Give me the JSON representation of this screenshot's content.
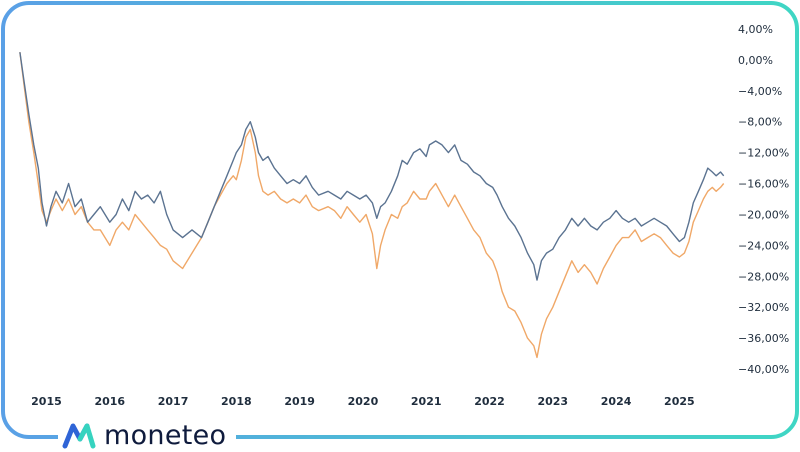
{
  "brand": {
    "name": "moneteo",
    "logo_icon": "moneteo-logo-icon",
    "colors": {
      "frame_start": "#5aa0e6",
      "frame_end": "#3fd6c4",
      "logo_blue": "#2f64d6",
      "logo_teal": "#36d3bf",
      "text": "#0f1b3d"
    }
  },
  "chart_data": {
    "type": "line",
    "title": "",
    "xlabel": "",
    "ylabel": "",
    "x_ticks": [
      "2015",
      "2016",
      "2017",
      "2018",
      "2019",
      "2020",
      "2021",
      "2022",
      "2023",
      "2024",
      "2025"
    ],
    "y_ticks": [
      "4,00%",
      "0,00%",
      "−4,00%",
      "−8,00%",
      "−12,00%",
      "−16,00%",
      "−20,00%",
      "−24,00%",
      "−28,00%",
      "−32,00%",
      "−36,00%",
      "−40,00%"
    ],
    "y_tick_values": [
      4,
      0,
      -4,
      -8,
      -12,
      -16,
      -20,
      -24,
      -28,
      -32,
      -36,
      -40
    ],
    "ylim": [
      -42,
      5
    ],
    "xlim": [
      2014.55,
      2025.8
    ],
    "y_axis_position": "right",
    "grid": false,
    "legend": "none",
    "series": [
      {
        "color": "#5b7391",
        "points": [
          [
            2014.58,
            1.0
          ],
          [
            2014.65,
            -3.0
          ],
          [
            2014.72,
            -7.0
          ],
          [
            2014.8,
            -11.0
          ],
          [
            2014.87,
            -14.0
          ],
          [
            2014.93,
            -18.5
          ],
          [
            2015.0,
            -21.5
          ],
          [
            2015.07,
            -19.0
          ],
          [
            2015.15,
            -17.0
          ],
          [
            2015.25,
            -18.5
          ],
          [
            2015.35,
            -16.0
          ],
          [
            2015.45,
            -19.0
          ],
          [
            2015.55,
            -18.0
          ],
          [
            2015.65,
            -21.0
          ],
          [
            2015.75,
            -20.0
          ],
          [
            2015.85,
            -19.0
          ],
          [
            2016.0,
            -21.0
          ],
          [
            2016.1,
            -20.0
          ],
          [
            2016.2,
            -18.0
          ],
          [
            2016.3,
            -19.5
          ],
          [
            2016.4,
            -17.0
          ],
          [
            2016.5,
            -18.0
          ],
          [
            2016.6,
            -17.5
          ],
          [
            2016.7,
            -18.5
          ],
          [
            2016.8,
            -17.0
          ],
          [
            2016.9,
            -20.0
          ],
          [
            2017.0,
            -22.0
          ],
          [
            2017.15,
            -23.0
          ],
          [
            2017.3,
            -22.0
          ],
          [
            2017.45,
            -23.0
          ],
          [
            2017.55,
            -21.0
          ],
          [
            2017.65,
            -19.0
          ],
          [
            2017.75,
            -17.0
          ],
          [
            2017.85,
            -15.0
          ],
          [
            2017.95,
            -13.0
          ],
          [
            2018.0,
            -12.0
          ],
          [
            2018.08,
            -11.0
          ],
          [
            2018.15,
            -9.0
          ],
          [
            2018.22,
            -8.0
          ],
          [
            2018.3,
            -10.0
          ],
          [
            2018.35,
            -12.0
          ],
          [
            2018.42,
            -13.0
          ],
          [
            2018.5,
            -12.5
          ],
          [
            2018.6,
            -14.0
          ],
          [
            2018.7,
            -15.0
          ],
          [
            2018.8,
            -16.0
          ],
          [
            2018.9,
            -15.5
          ],
          [
            2019.0,
            -16.0
          ],
          [
            2019.1,
            -15.0
          ],
          [
            2019.2,
            -16.5
          ],
          [
            2019.3,
            -17.5
          ],
          [
            2019.45,
            -17.0
          ],
          [
            2019.55,
            -17.5
          ],
          [
            2019.65,
            -18.0
          ],
          [
            2019.75,
            -17.0
          ],
          [
            2019.85,
            -17.5
          ],
          [
            2019.95,
            -18.0
          ],
          [
            2020.05,
            -17.5
          ],
          [
            2020.15,
            -18.5
          ],
          [
            2020.22,
            -20.5
          ],
          [
            2020.28,
            -19.0
          ],
          [
            2020.35,
            -18.5
          ],
          [
            2020.45,
            -17.0
          ],
          [
            2020.55,
            -15.0
          ],
          [
            2020.62,
            -13.0
          ],
          [
            2020.7,
            -13.5
          ],
          [
            2020.8,
            -12.0
          ],
          [
            2020.9,
            -11.5
          ],
          [
            2021.0,
            -12.5
          ],
          [
            2021.05,
            -11.0
          ],
          [
            2021.15,
            -10.5
          ],
          [
            2021.25,
            -11.0
          ],
          [
            2021.35,
            -12.0
          ],
          [
            2021.45,
            -11.0
          ],
          [
            2021.55,
            -13.0
          ],
          [
            2021.65,
            -13.5
          ],
          [
            2021.75,
            -14.5
          ],
          [
            2021.85,
            -15.0
          ],
          [
            2021.95,
            -16.0
          ],
          [
            2022.05,
            -16.5
          ],
          [
            2022.12,
            -17.5
          ],
          [
            2022.2,
            -19.0
          ],
          [
            2022.3,
            -20.5
          ],
          [
            2022.4,
            -21.5
          ],
          [
            2022.5,
            -23.0
          ],
          [
            2022.6,
            -25.0
          ],
          [
            2022.7,
            -26.5
          ],
          [
            2022.75,
            -28.5
          ],
          [
            2022.82,
            -26.0
          ],
          [
            2022.9,
            -25.0
          ],
          [
            2023.0,
            -24.5
          ],
          [
            2023.1,
            -23.0
          ],
          [
            2023.2,
            -22.0
          ],
          [
            2023.3,
            -20.5
          ],
          [
            2023.4,
            -21.5
          ],
          [
            2023.5,
            -20.5
          ],
          [
            2023.6,
            -21.5
          ],
          [
            2023.7,
            -22.0
          ],
          [
            2023.8,
            -21.0
          ],
          [
            2023.9,
            -20.5
          ],
          [
            2024.0,
            -19.5
          ],
          [
            2024.1,
            -20.5
          ],
          [
            2024.2,
            -21.0
          ],
          [
            2024.3,
            -20.5
          ],
          [
            2024.4,
            -21.5
          ],
          [
            2024.5,
            -21.0
          ],
          [
            2024.6,
            -20.5
          ],
          [
            2024.7,
            -21.0
          ],
          [
            2024.8,
            -21.5
          ],
          [
            2024.9,
            -22.5
          ],
          [
            2025.0,
            -23.5
          ],
          [
            2025.08,
            -23.0
          ],
          [
            2025.15,
            -21.0
          ],
          [
            2025.22,
            -18.5
          ],
          [
            2025.3,
            -17.0
          ],
          [
            2025.38,
            -15.5
          ],
          [
            2025.45,
            -14.0
          ],
          [
            2025.52,
            -14.5
          ],
          [
            2025.58,
            -15.0
          ],
          [
            2025.65,
            -14.5
          ],
          [
            2025.7,
            -15.0
          ]
        ]
      },
      {
        "color": "#f0a868",
        "points": [
          [
            2014.58,
            1.0
          ],
          [
            2014.65,
            -3.5
          ],
          [
            2014.72,
            -8.0
          ],
          [
            2014.8,
            -12.0
          ],
          [
            2014.87,
            -16.0
          ],
          [
            2014.93,
            -19.5
          ],
          [
            2015.0,
            -21.0
          ],
          [
            2015.07,
            -19.5
          ],
          [
            2015.15,
            -18.0
          ],
          [
            2015.25,
            -19.5
          ],
          [
            2015.35,
            -18.0
          ],
          [
            2015.45,
            -20.0
          ],
          [
            2015.55,
            -19.0
          ],
          [
            2015.65,
            -21.0
          ],
          [
            2015.75,
            -22.0
          ],
          [
            2015.85,
            -22.0
          ],
          [
            2016.0,
            -24.0
          ],
          [
            2016.1,
            -22.0
          ],
          [
            2016.2,
            -21.0
          ],
          [
            2016.3,
            -22.0
          ],
          [
            2016.4,
            -20.0
          ],
          [
            2016.5,
            -21.0
          ],
          [
            2016.6,
            -22.0
          ],
          [
            2016.7,
            -23.0
          ],
          [
            2016.8,
            -24.0
          ],
          [
            2016.9,
            -24.5
          ],
          [
            2017.0,
            -26.0
          ],
          [
            2017.15,
            -27.0
          ],
          [
            2017.3,
            -25.0
          ],
          [
            2017.45,
            -23.0
          ],
          [
            2017.55,
            -21.0
          ],
          [
            2017.65,
            -19.0
          ],
          [
            2017.75,
            -17.5
          ],
          [
            2017.85,
            -16.0
          ],
          [
            2017.95,
            -15.0
          ],
          [
            2018.0,
            -15.5
          ],
          [
            2018.08,
            -13.0
          ],
          [
            2018.15,
            -10.0
          ],
          [
            2018.22,
            -9.0
          ],
          [
            2018.3,
            -12.0
          ],
          [
            2018.35,
            -15.0
          ],
          [
            2018.42,
            -17.0
          ],
          [
            2018.5,
            -17.5
          ],
          [
            2018.6,
            -17.0
          ],
          [
            2018.7,
            -18.0
          ],
          [
            2018.8,
            -18.5
          ],
          [
            2018.9,
            -18.0
          ],
          [
            2019.0,
            -18.5
          ],
          [
            2019.1,
            -17.5
          ],
          [
            2019.2,
            -19.0
          ],
          [
            2019.3,
            -19.5
          ],
          [
            2019.45,
            -19.0
          ],
          [
            2019.55,
            -19.5
          ],
          [
            2019.65,
            -20.5
          ],
          [
            2019.75,
            -19.0
          ],
          [
            2019.85,
            -20.0
          ],
          [
            2019.95,
            -21.0
          ],
          [
            2020.05,
            -20.0
          ],
          [
            2020.15,
            -22.5
          ],
          [
            2020.22,
            -27.0
          ],
          [
            2020.28,
            -24.0
          ],
          [
            2020.35,
            -22.0
          ],
          [
            2020.45,
            -20.0
          ],
          [
            2020.55,
            -20.5
          ],
          [
            2020.62,
            -19.0
          ],
          [
            2020.7,
            -18.5
          ],
          [
            2020.8,
            -17.0
          ],
          [
            2020.9,
            -18.0
          ],
          [
            2021.0,
            -18.0
          ],
          [
            2021.05,
            -17.0
          ],
          [
            2021.15,
            -16.0
          ],
          [
            2021.25,
            -17.5
          ],
          [
            2021.35,
            -19.0
          ],
          [
            2021.45,
            -17.5
          ],
          [
            2021.55,
            -19.0
          ],
          [
            2021.65,
            -20.5
          ],
          [
            2021.75,
            -22.0
          ],
          [
            2021.85,
            -23.0
          ],
          [
            2021.95,
            -25.0
          ],
          [
            2022.05,
            -26.0
          ],
          [
            2022.12,
            -27.5
          ],
          [
            2022.2,
            -30.0
          ],
          [
            2022.3,
            -32.0
          ],
          [
            2022.4,
            -32.5
          ],
          [
            2022.5,
            -34.0
          ],
          [
            2022.6,
            -36.0
          ],
          [
            2022.7,
            -37.0
          ],
          [
            2022.75,
            -38.5
          ],
          [
            2022.82,
            -35.5
          ],
          [
            2022.9,
            -33.5
          ],
          [
            2023.0,
            -32.0
          ],
          [
            2023.1,
            -30.0
          ],
          [
            2023.2,
            -28.0
          ],
          [
            2023.3,
            -26.0
          ],
          [
            2023.4,
            -27.5
          ],
          [
            2023.5,
            -26.5
          ],
          [
            2023.6,
            -27.5
          ],
          [
            2023.7,
            -29.0
          ],
          [
            2023.8,
            -27.0
          ],
          [
            2023.9,
            -25.5
          ],
          [
            2024.0,
            -24.0
          ],
          [
            2024.1,
            -23.0
          ],
          [
            2024.2,
            -23.0
          ],
          [
            2024.3,
            -22.0
          ],
          [
            2024.4,
            -23.5
          ],
          [
            2024.5,
            -23.0
          ],
          [
            2024.6,
            -22.5
          ],
          [
            2024.7,
            -23.0
          ],
          [
            2024.8,
            -24.0
          ],
          [
            2024.9,
            -25.0
          ],
          [
            2025.0,
            -25.5
          ],
          [
            2025.08,
            -25.0
          ],
          [
            2025.15,
            -23.5
          ],
          [
            2025.22,
            -21.0
          ],
          [
            2025.3,
            -19.5
          ],
          [
            2025.38,
            -18.0
          ],
          [
            2025.45,
            -17.0
          ],
          [
            2025.52,
            -16.5
          ],
          [
            2025.58,
            -17.0
          ],
          [
            2025.65,
            -16.5
          ],
          [
            2025.7,
            -16.0
          ]
        ]
      }
    ]
  }
}
